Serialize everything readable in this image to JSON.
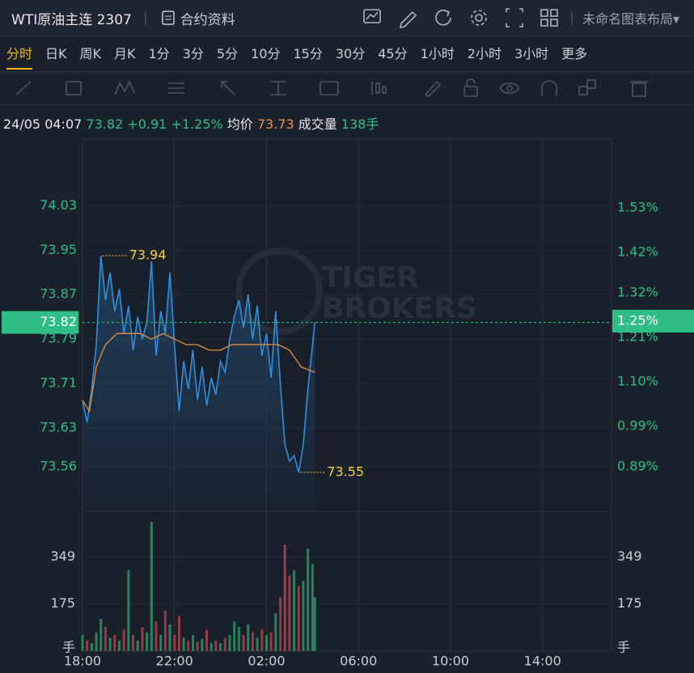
{
  "header": {
    "title": "WTI原油主连 2307",
    "info_button": "合约资料",
    "layout_menu": "未命名图表布局"
  },
  "tabs": [
    "分时",
    "日K",
    "周K",
    "月K",
    "1分",
    "3分",
    "5分",
    "10分",
    "15分",
    "30分",
    "45分",
    "1小时",
    "2小时",
    "3小时",
    "更多"
  ],
  "active_tab": 0,
  "info": {
    "time": "24/05 04:07",
    "price": "73.82",
    "change": "+0.91",
    "change_pct": "+1.25%",
    "avg_label": "均价",
    "avg": "73.73",
    "volume_label": "成交量",
    "volume": "138手"
  },
  "chart_data": {
    "type": "line",
    "xlim": [
      0,
      23
    ],
    "xticks": [
      {
        "value": 0,
        "label": "18:00"
      },
      {
        "value": 4,
        "label": "22:00"
      },
      {
        "value": 8,
        "label": "02:00"
      },
      {
        "value": 12,
        "label": "06:00"
      },
      {
        "value": 16,
        "label": "10:00"
      },
      {
        "value": 20,
        "label": "14:00"
      }
    ],
    "ylim": [
      73.48,
      74.15
    ],
    "yticks": [
      74.03,
      73.95,
      73.87,
      73.79,
      73.71,
      73.63,
      73.56
    ],
    "y2lim": [
      0.78,
      1.7
    ],
    "y2ticks": [
      {
        "value": 1.53,
        "label": "1.53%"
      },
      {
        "value": 1.42,
        "label": "1.42%"
      },
      {
        "value": 1.32,
        "label": "1.32%"
      },
      {
        "value": 1.21,
        "label": "1.21%"
      },
      {
        "value": 1.1,
        "label": "1.10%"
      },
      {
        "value": 0.99,
        "label": "0.99%"
      },
      {
        "value": 0.89,
        "label": "0.89%"
      }
    ],
    "grid": true,
    "series": [
      {
        "color": "#2f8fe0",
        "fill": true,
        "x": [
          0,
          0.2,
          0.4,
          0.6,
          0.8,
          1.0,
          1.2,
          1.4,
          1.6,
          1.8,
          2.0,
          2.2,
          2.4,
          2.6,
          2.8,
          3.0,
          3.2,
          3.4,
          3.6,
          3.8,
          4.0,
          4.2,
          4.4,
          4.6,
          4.8,
          5.0,
          5.2,
          5.4,
          5.6,
          5.8,
          6.0,
          6.2,
          6.4,
          6.6,
          6.8,
          7.0,
          7.2,
          7.4,
          7.6,
          7.8,
          8.0,
          8.2,
          8.4,
          8.6,
          8.8,
          9.0,
          9.2,
          9.4,
          9.6,
          9.8,
          10.0,
          10.1
        ],
        "values": [
          73.68,
          73.64,
          73.7,
          73.78,
          73.94,
          73.86,
          73.91,
          73.84,
          73.88,
          73.8,
          73.85,
          73.77,
          73.83,
          73.79,
          73.82,
          73.93,
          73.76,
          73.84,
          73.8,
          73.91,
          73.78,
          73.66,
          73.75,
          73.7,
          73.77,
          73.68,
          73.74,
          73.67,
          73.72,
          73.69,
          73.75,
          73.73,
          73.79,
          73.83,
          73.86,
          73.81,
          73.87,
          73.79,
          73.85,
          73.76,
          73.8,
          73.72,
          73.84,
          73.71,
          73.6,
          73.57,
          73.58,
          73.55,
          73.6,
          73.7,
          73.78,
          73.82
        ]
      },
      {
        "color": "#e8903a",
        "fill": false,
        "x": [
          0,
          0.3,
          0.6,
          1.0,
          1.5,
          2.0,
          2.5,
          3.0,
          3.5,
          4.0,
          4.5,
          5.0,
          5.5,
          6.0,
          6.5,
          7.0,
          7.5,
          8.0,
          8.5,
          9.0,
          9.5,
          10.1
        ],
        "values": [
          73.68,
          73.66,
          73.74,
          73.78,
          73.8,
          73.8,
          73.8,
          73.79,
          73.8,
          73.79,
          73.78,
          73.78,
          73.77,
          73.77,
          73.78,
          73.78,
          73.78,
          73.78,
          73.78,
          73.77,
          73.74,
          73.73
        ]
      }
    ],
    "volume": {
      "type": "bar",
      "up_color": "#2e9a6a",
      "down_color": "#b5454a",
      "values": [
        60,
        40,
        30,
        70,
        120,
        90,
        50,
        60,
        40,
        80,
        300,
        60,
        40,
        90,
        70,
        480,
        110,
        60,
        150,
        100,
        60,
        130,
        50,
        40,
        60,
        35,
        45,
        80,
        30,
        40,
        30,
        50,
        60,
        110,
        90,
        60,
        100,
        70,
        50,
        80,
        60,
        70,
        140,
        200,
        396,
        280,
        300,
        240,
        260,
        380,
        324,
        200
      ],
      "ylim": [
        0,
        519
      ],
      "yticks": [
        {
          "value": 0,
          "label": "手"
        },
        175,
        349
      ]
    },
    "last_price": 73.82,
    "last_pct": {
      "value": 1.25,
      "label": "1.25%"
    },
    "high": {
      "x": 0.8,
      "value": 73.94
    },
    "low": {
      "x": 9.4,
      "value": 73.55
    },
    "watermark": [
      "TIGER",
      "BROKERS"
    ]
  }
}
